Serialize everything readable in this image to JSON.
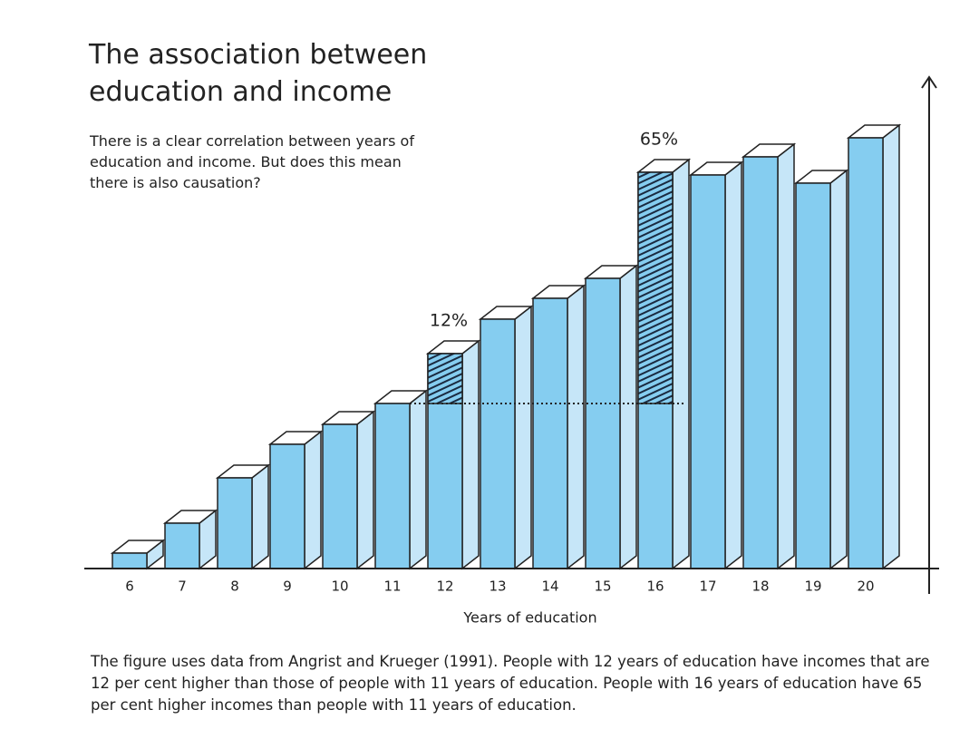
{
  "chart_data": {
    "type": "bar3d",
    "title": "The association between education and income",
    "subtitle": "There is a clear correlation between years of education and income. But does this mean there is also causation?",
    "x_label": "Years of education",
    "caption": "The figure uses data from Angrist and Krueger (1991). People with 12 years of education have incomes that are 12 per cent higher than those of people with 11 years of education. People with 16 years of education have 65 per cent higher incomes than people with 11 years of education.",
    "categories": [
      "6",
      "7",
      "8",
      "9",
      "10",
      "11",
      "12",
      "13",
      "14",
      "15",
      "16",
      "17",
      "18",
      "19",
      "20"
    ],
    "values": [
      17,
      50,
      100,
      137,
      159,
      182,
      237,
      275,
      298,
      320,
      437,
      434,
      454,
      425,
      475
    ],
    "color": "#85cdf0",
    "ylim": [
      0,
      542
    ],
    "reference_index": 5,
    "annotations": [
      {
        "index": 6,
        "text": "12%"
      },
      {
        "index": 10,
        "text": "65%"
      }
    ]
  }
}
